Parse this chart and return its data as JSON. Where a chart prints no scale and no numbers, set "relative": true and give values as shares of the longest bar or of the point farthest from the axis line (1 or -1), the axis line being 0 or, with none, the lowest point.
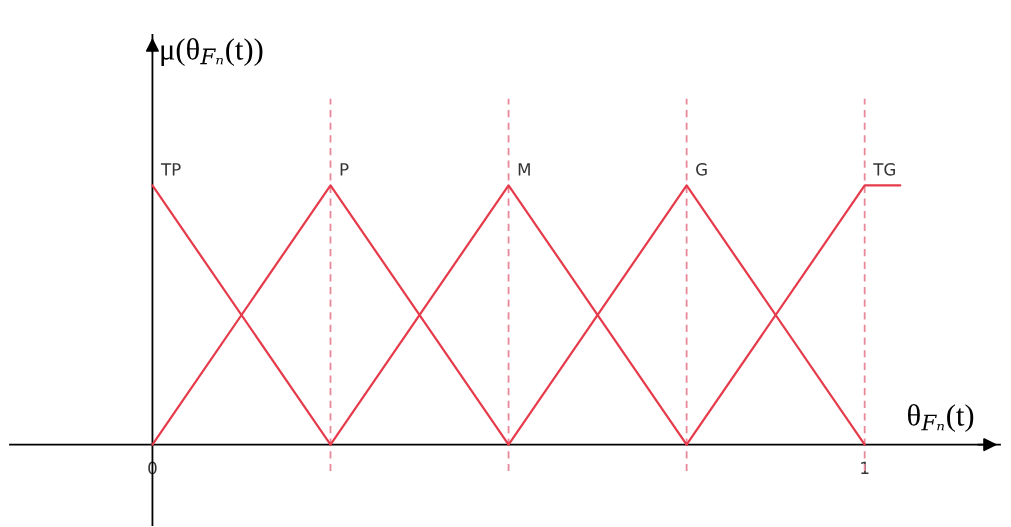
{
  "chart_data": {
    "type": "line",
    "relative": true,
    "xlabel": "θ$_{Fₙ}$(t)",
    "ylabel": "μ(θ$_{Fₙ}$(t))",
    "xlim": [
      -0.2,
      1.19
    ],
    "xticks": [
      0,
      1
    ],
    "tick_labels": "x",
    "series": [
      {
        "name": "TP",
        "color": "#e53b4b",
        "x": [
          0,
          0.25
        ],
        "values": [
          1,
          0
        ]
      },
      {
        "name": "P",
        "color": "#e53b4b",
        "x": [
          0,
          0.25,
          0.5
        ],
        "values": [
          0,
          1,
          0
        ]
      },
      {
        "name": "M",
        "color": "#e53b4b",
        "x": [
          0.25,
          0.5,
          0.75
        ],
        "values": [
          0,
          1,
          0
        ]
      },
      {
        "name": "G",
        "color": "#e53b4b",
        "x": [
          0.5,
          0.75,
          1
        ],
        "values": [
          0,
          1,
          0
        ]
      },
      {
        "name": "TG",
        "color": "#e53b4b",
        "x": [
          0.75,
          1,
          1.05
        ],
        "values": [
          0,
          1,
          1
        ]
      }
    ],
    "ref_lines": [
      {
        "axis": "x",
        "value": 0.25,
        "color": "#e8899a",
        "line_style": "dashed"
      },
      {
        "axis": "x",
        "value": 0.5,
        "color": "#e8899a",
        "line_style": "dashed"
      },
      {
        "axis": "x",
        "value": 0.75,
        "color": "#e8899a",
        "line_style": "dashed"
      },
      {
        "axis": "x",
        "value": 1,
        "color": "#e8899a",
        "line_style": "dashed"
      }
    ]
  }
}
